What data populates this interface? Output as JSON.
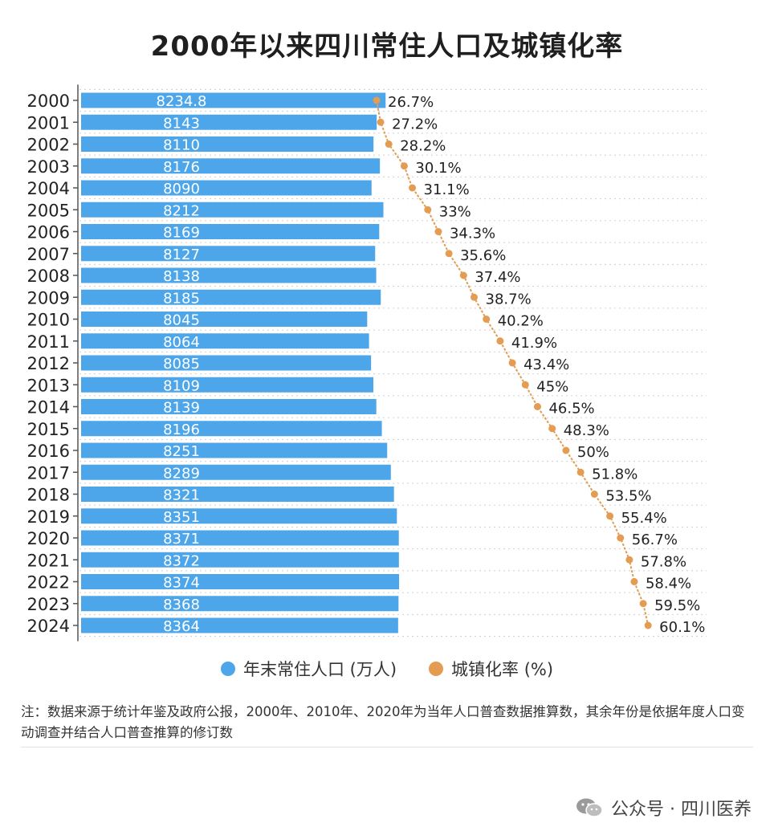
{
  "chart_data": {
    "type": "bar+line",
    "title": "2000年以来四川常住人口及城镇化率",
    "categories": [
      "2000",
      "2001",
      "2002",
      "2003",
      "2004",
      "2005",
      "2006",
      "2007",
      "2008",
      "2009",
      "2010",
      "2011",
      "2012",
      "2013",
      "2014",
      "2015",
      "2016",
      "2017",
      "2018",
      "2019",
      "2020",
      "2021",
      "2022",
      "2023",
      "2024"
    ],
    "series": [
      {
        "name": "年末常住人口 (万人)",
        "kind": "bar",
        "color": "#4DA6EA",
        "values": [
          8234.8,
          8143,
          8110,
          8176,
          8090,
          8212,
          8169,
          8127,
          8138,
          8185,
          8045,
          8064,
          8085,
          8109,
          8139,
          8196,
          8251,
          8289,
          8321,
          8351,
          8371,
          8372,
          8374,
          8368,
          8364
        ],
        "labels": [
          "8234.8",
          "8143",
          "8110",
          "8176",
          "8090",
          "8212",
          "8169",
          "8127",
          "8138",
          "8185",
          "8045",
          "8064",
          "8085",
          "8109",
          "8139",
          "8196",
          "8251",
          "8289",
          "8321",
          "8351",
          "8371",
          "8372",
          "8374",
          "8368",
          "8364"
        ]
      },
      {
        "name": "城镇化率 (%)",
        "kind": "line",
        "color": "#E39C51",
        "values": [
          26.7,
          27.2,
          28.2,
          30.1,
          31.1,
          33,
          34.3,
          35.6,
          37.4,
          38.7,
          40.2,
          41.9,
          43.4,
          45,
          46.5,
          48.3,
          50,
          51.8,
          53.5,
          55.4,
          56.7,
          57.8,
          58.4,
          59.5,
          60.1
        ],
        "labels": [
          "26.7%",
          "27.2%",
          "28.2%",
          "30.1%",
          "31.1%",
          "33%",
          "34.3%",
          "35.6%",
          "37.4%",
          "38.7%",
          "40.2%",
          "41.9%",
          "43.4%",
          "45%",
          "46.5%",
          "48.3%",
          "50%",
          "51.8%",
          "53.5%",
          "55.4%",
          "56.7%",
          "57.8%",
          "58.4%",
          "59.5%",
          "60.1%"
        ]
      }
    ],
    "legend": [
      "年末常住人口 (万人)",
      "城镇化率 (%)"
    ],
    "legend_position": "bottom",
    "grid": true
  },
  "note": "注：数据来源于统计年鉴及政府公报，2000年、2010年、2020年为当年人口普查数据推算数，其余年份是依据年度人口变动调查并结合人口普查推算的修订数",
  "watermark": "公众号 · 四川医养",
  "watermark_icon": "wechat-icon",
  "colors": {
    "bar": "#4DA6EA",
    "line": "#E39C51",
    "grid": "#cfcfcf"
  }
}
